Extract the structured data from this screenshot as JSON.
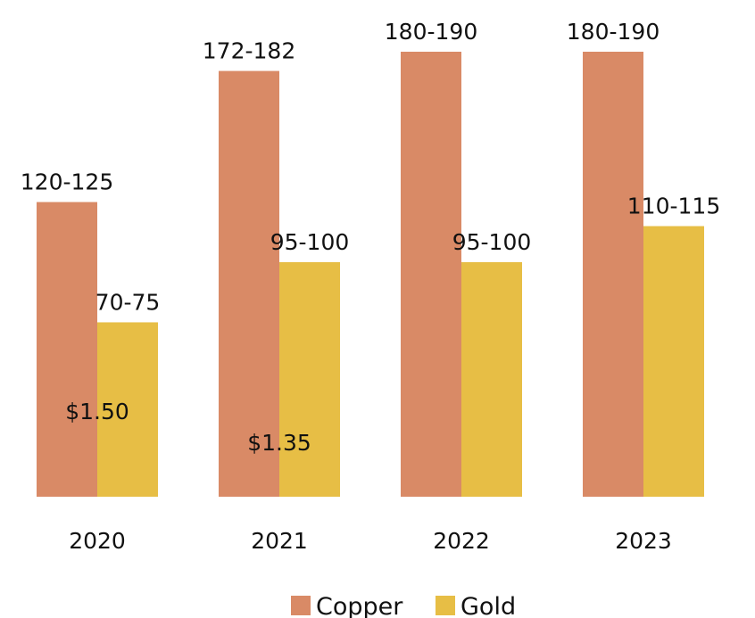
{
  "chart_data": {
    "type": "bar",
    "categories": [
      "2020",
      "2021",
      "2022",
      "2023"
    ],
    "series": [
      {
        "name": "Copper",
        "color": "#D98A66",
        "values": [
          122.5,
          177,
          185,
          185
        ],
        "labels": [
          "120-125",
          "172-182",
          "180-190",
          "180-190"
        ]
      },
      {
        "name": "Gold",
        "color": "#E7BE45",
        "values": [
          72.5,
          97.5,
          97.5,
          112.5
        ],
        "labels": [
          "70-75",
          "95-100",
          "95-100",
          "110-115"
        ]
      }
    ],
    "annotations": [
      {
        "category": "2020",
        "text": "$1.50"
      },
      {
        "category": "2021",
        "text": "$1.35"
      }
    ],
    "ylim": [
      0,
      185
    ],
    "grid": false,
    "legend": "bottom-center"
  }
}
